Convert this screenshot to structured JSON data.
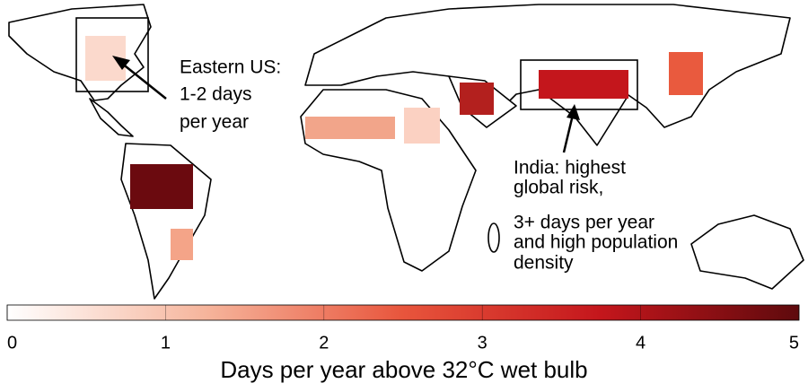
{
  "chart_data": {
    "type": "map",
    "annotations": [
      {
        "lines": [
          "Eastern US:",
          "1-2 days",
          "per year"
        ]
      },
      {
        "lines": [
          "India: highest",
          "global risk,",
          " 3+ days per year",
          "and high population",
          "density"
        ]
      }
    ],
    "colorbar": {
      "xlim": [
        0,
        5
      ],
      "xticks": [
        0,
        1,
        2,
        3,
        4,
        5
      ],
      "colors": [
        "#ffffff",
        "#f6b59c",
        "#e8553c",
        "#c4161c",
        "#5e0a0d"
      ],
      "label": "Days per year above 32°C wet bulb"
    }
  }
}
